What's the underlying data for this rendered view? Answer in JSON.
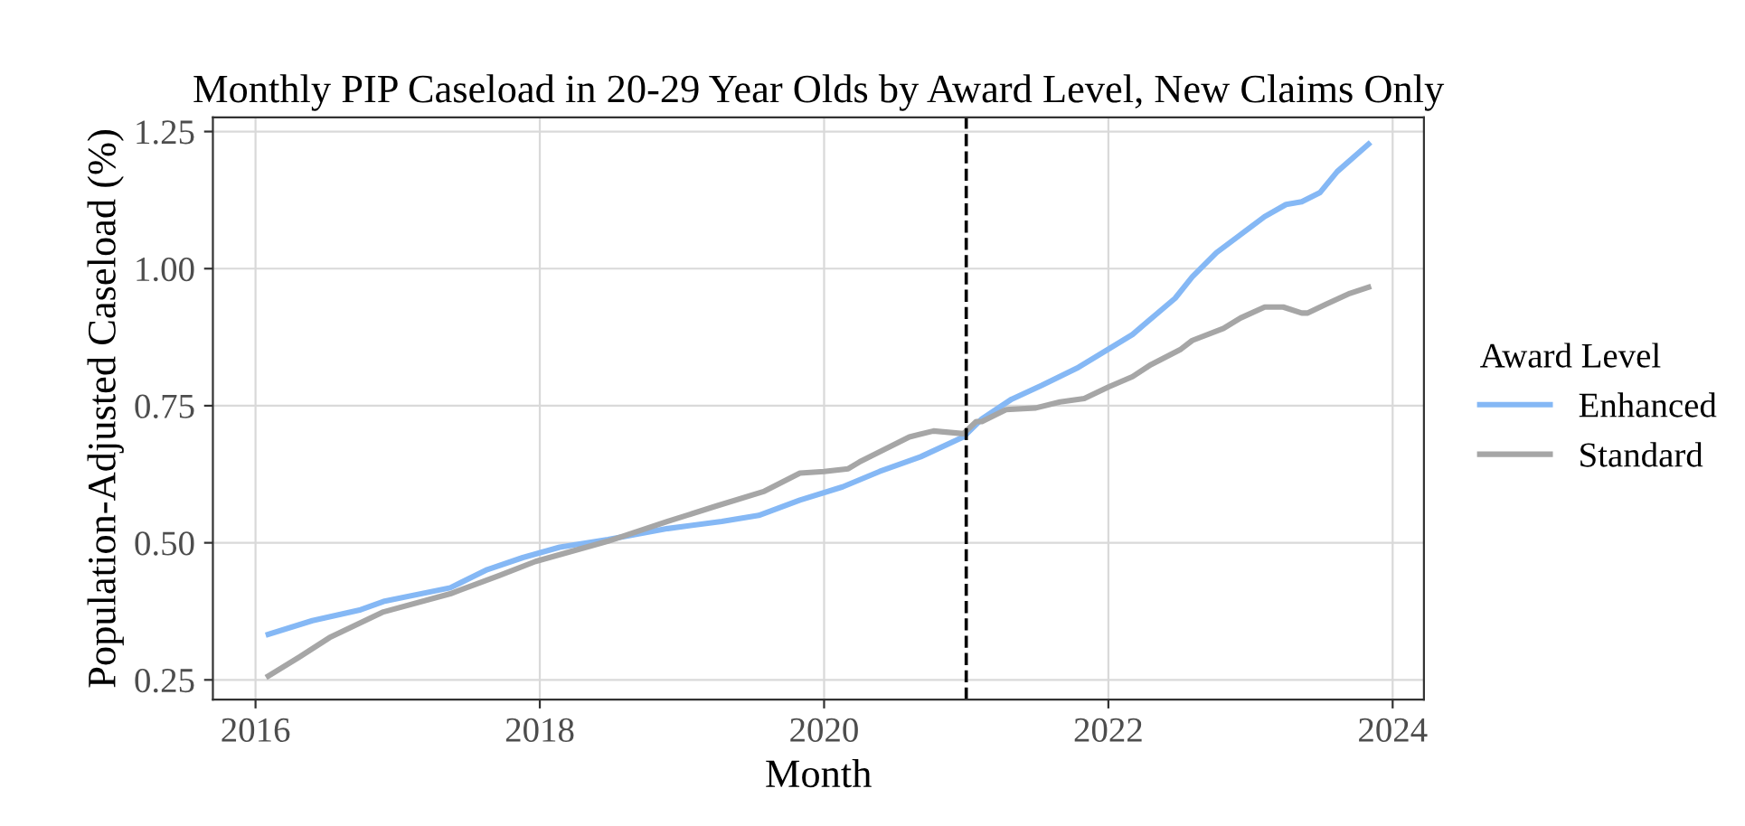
{
  "chart_data": {
    "type": "line",
    "title": "Monthly PIP Caseload in 20-29 Year Olds by Award Level, New Claims Only",
    "xlabel": "Month",
    "ylabel": "Population-Adjusted Caseload (%)",
    "legend_title": "Award Level",
    "legend": "right",
    "grid": true,
    "line_style": "solid",
    "marker": "none",
    "xlim": [
      2015.7,
      2024.22
    ],
    "xticks": [
      2016,
      2018,
      2020,
      2022,
      2024
    ],
    "ylim": [
      0.214,
      1.276
    ],
    "yticks": [
      {
        "value": 0.25,
        "label": "0.25"
      },
      {
        "value": 0.5,
        "label": "0.50"
      },
      {
        "value": 0.75,
        "label": "0.75"
      },
      {
        "value": 1.0,
        "label": "1.00"
      },
      {
        "value": 1.25,
        "label": "1.25"
      }
    ],
    "ref_lines": [
      {
        "axis": "x",
        "value": 2021.0,
        "color": "#000000",
        "line_style": "dashed"
      }
    ],
    "series": [
      {
        "name": "Enhanced",
        "color": "#85b8f5",
        "x": [
          2016.09,
          2016.4,
          2016.74,
          2016.9,
          2017.37,
          2017.63,
          2017.88,
          2018.14,
          2018.48,
          2018.9,
          2019.28,
          2019.54,
          2019.83,
          2020.13,
          2020.39,
          2020.68,
          2020.98,
          2021.11,
          2021.32,
          2021.53,
          2021.79,
          2022.0,
          2022.17,
          2022.47,
          2022.59,
          2022.76,
          2022.93,
          2023.1,
          2023.25,
          2023.36,
          2023.49,
          2023.61,
          2023.83
        ],
        "values": [
          0.333,
          0.358,
          0.378,
          0.393,
          0.418,
          0.451,
          0.473,
          0.492,
          0.506,
          0.526,
          0.539,
          0.55,
          0.578,
          0.602,
          0.63,
          0.657,
          0.693,
          0.726,
          0.762,
          0.787,
          0.82,
          0.853,
          0.88,
          0.946,
          0.985,
          1.029,
          1.062,
          1.095,
          1.117,
          1.122,
          1.139,
          1.177,
          1.227
        ]
      },
      {
        "name": "Standard",
        "color": "#a6a6a6",
        "x": [
          2016.09,
          2016.31,
          2016.52,
          2016.9,
          2017.37,
          2017.71,
          2017.97,
          2018.48,
          2018.9,
          2019.24,
          2019.58,
          2019.83,
          2020.0,
          2020.17,
          2020.26,
          2020.6,
          2020.77,
          2020.98,
          2021.07,
          2021.11,
          2021.28,
          2021.49,
          2021.66,
          2021.83,
          2022.0,
          2022.17,
          2022.3,
          2022.51,
          2022.59,
          2022.81,
          2022.93,
          2023.1,
          2023.23,
          2023.36,
          2023.4,
          2023.53,
          2023.7,
          2023.83
        ],
        "values": [
          0.257,
          0.292,
          0.327,
          0.374,
          0.407,
          0.44,
          0.466,
          0.503,
          0.539,
          0.567,
          0.594,
          0.627,
          0.63,
          0.635,
          0.649,
          0.693,
          0.704,
          0.699,
          0.721,
          0.721,
          0.743,
          0.746,
          0.757,
          0.763,
          0.784,
          0.803,
          0.825,
          0.853,
          0.869,
          0.891,
          0.91,
          0.93,
          0.93,
          0.919,
          0.919,
          0.935,
          0.955,
          0.966
        ]
      }
    ]
  }
}
